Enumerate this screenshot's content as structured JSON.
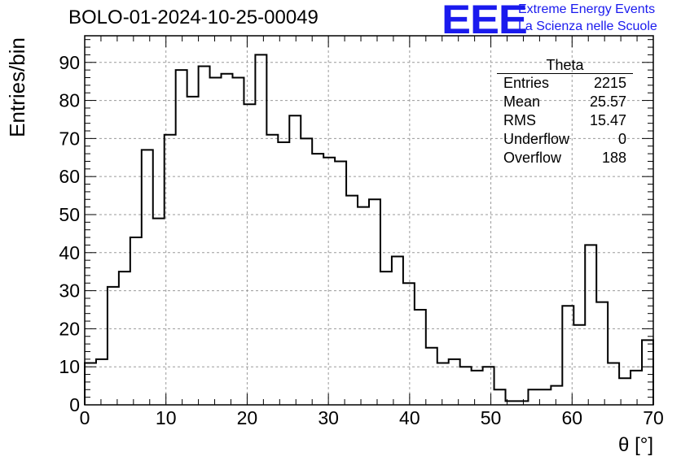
{
  "chart_data": {
    "type": "bar",
    "title": "BOLO-01-2024-10-25-00049",
    "xlabel": "θ [°]",
    "ylabel": "Entries/bin",
    "xlim": [
      0,
      70
    ],
    "ylim": [
      0,
      97
    ],
    "bin_width": 1.4,
    "x_ticks": [
      0,
      10,
      20,
      30,
      40,
      50,
      60,
      70
    ],
    "y_ticks": [
      0,
      10,
      20,
      30,
      40,
      50,
      60,
      70,
      80,
      90
    ],
    "grid": true,
    "values": [
      11,
      12,
      31,
      35,
      44,
      67,
      49,
      71,
      88,
      81,
      89,
      86,
      87,
      86,
      79,
      92,
      71,
      69,
      76,
      70,
      66,
      65,
      64,
      55,
      52,
      54,
      35,
      39,
      32,
      25,
      15,
      11,
      12,
      10,
      9,
      10,
      4,
      1,
      1,
      4,
      4,
      5,
      26,
      21,
      42,
      27,
      11,
      7,
      9,
      17
    ],
    "line_color": "#000000"
  },
  "stats_box": {
    "title": "Theta",
    "rows": [
      {
        "label": "Entries",
        "value": "2215"
      },
      {
        "label": "Mean",
        "value": "25.57"
      },
      {
        "label": "RMS",
        "value": "15.47"
      },
      {
        "label": "Underflow",
        "value": "0"
      },
      {
        "label": "Overflow",
        "value": "188"
      }
    ]
  },
  "logo": {
    "mark": "EEE",
    "line1": "Extreme Energy Events",
    "line2": "La Scienza nelle Scuole",
    "color": "#1a1aee"
  }
}
